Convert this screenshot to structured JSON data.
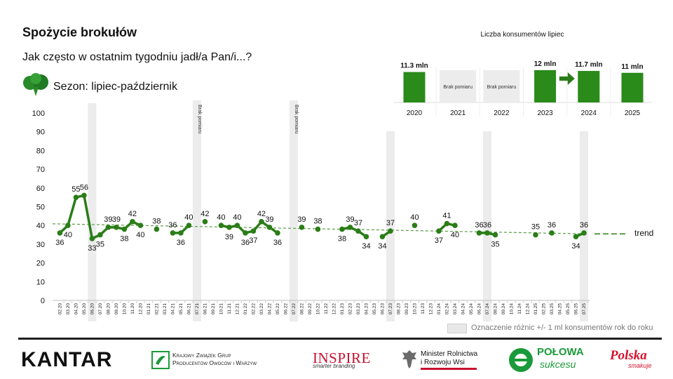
{
  "title": "Spożycie brokułów",
  "subtitle": "Jak często w ostatnim tygodniu jadł/a Pan/i...?",
  "season": "Sezon: lipiec-październik",
  "legend": "Oznaczenie różnic +/- 1 ml konsumentów rok do roku",
  "trend_label": "trend",
  "brak_pomiaru_vertical": "Brak pomiaru",
  "colors": {
    "line": "#2a7d17",
    "trend": "#5a9a45",
    "band": "#ececec",
    "bar": "#2a8a1a",
    "nodata": "#ececec"
  },
  "icons": {
    "season": "broccoli-icon",
    "ins_arrow": "arrow-right-icon"
  },
  "logos": {
    "kantar": "KANTAR",
    "kzg": [
      "Krajowy Związek Grup",
      "Producentów Owoców i Warzyw"
    ],
    "inspire": "INSPIRE",
    "inspire_tag": "smarter branding",
    "ministry": [
      "Minister Rolnictwa",
      "i Rozwoju Wsi"
    ],
    "polowa": "POŁOWA",
    "polowa2": "sukcesu",
    "polska": "Polska",
    "polska_tag": "smakuje"
  },
  "chart_data": [
    {
      "type": "line",
      "title": "",
      "ylim": [
        0,
        100
      ],
      "yticks": [
        0,
        10,
        20,
        30,
        40,
        50,
        60,
        70,
        80,
        90,
        100
      ],
      "grid": false,
      "x": [
        "02.20",
        "03.20",
        "04.20",
        "05.20",
        "06.20",
        "07.20",
        "08.20",
        "09.20",
        "10.20",
        "11.20",
        "12.20",
        "01.21",
        "02.21",
        "03.21",
        "04.21",
        "05.21",
        "06.21",
        "07.21",
        "08.21",
        "09.21",
        "10.21",
        "11.21",
        "12.21",
        "01.22",
        "02.22",
        "03.22",
        "04.22",
        "05.22",
        "06.22",
        "07.22",
        "08.22",
        "09.22",
        "10.22",
        "11.22",
        "12.22",
        "01.23",
        "02.23",
        "03.23",
        "04.23",
        "05.23",
        "06.23",
        "07.23",
        "08.23",
        "09.23",
        "10.23",
        "11.23",
        "12.23",
        "01.24",
        "02.24",
        "03.24",
        "04.24",
        "05.24",
        "06.24",
        "07.24",
        "08.24",
        "09.24",
        "10.24",
        "11.24",
        "12.24",
        "01.25",
        "02.25",
        "03.25",
        "04.25",
        "05.25",
        "06.25",
        "07.25"
      ],
      "series": [
        {
          "values": [
            36,
            40,
            55,
            56,
            33,
            35,
            39,
            39,
            38,
            42,
            40,
            null,
            38,
            null,
            36,
            36,
            40,
            null,
            42,
            null,
            40,
            39,
            40,
            36,
            37,
            42,
            39,
            36,
            null,
            null,
            39,
            null,
            38,
            null,
            null,
            38,
            39,
            37,
            34,
            null,
            34,
            37,
            null,
            null,
            40,
            null,
            null,
            37,
            41,
            40,
            null,
            null,
            36,
            36,
            35,
            null,
            null,
            null,
            null,
            35,
            null,
            36,
            null,
            null,
            34,
            36
          ]
        }
      ],
      "trend": {
        "start": 40.5,
        "end": 35.5
      },
      "highlight_bands": [
        "06.20",
        "07.21",
        "07.22",
        "07.23",
        "07.24",
        "07.25"
      ],
      "no_measure_bands": [
        "07.21",
        "07.22"
      ]
    },
    {
      "type": "bar",
      "title": "Liczba konsumentów lipiec",
      "categories": [
        "2020",
        "2021",
        "2022",
        "2023",
        "2024",
        "2025"
      ],
      "values": [
        11.3,
        null,
        null,
        12,
        11.7,
        11
      ],
      "labels": [
        "11.3 mln",
        "Brak pomiaru",
        "Brak pomiaru",
        "12 mln",
        "11.7 mln",
        "11 mln"
      ]
    }
  ]
}
